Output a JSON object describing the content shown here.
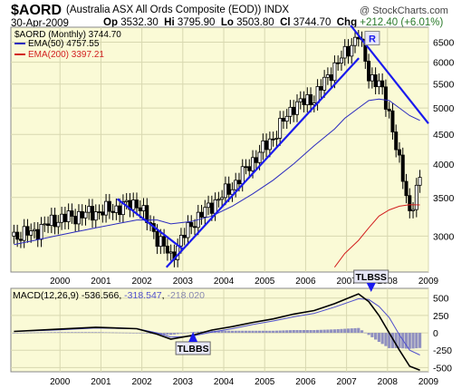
{
  "header": {
    "ticker": "$AORD",
    "name": "(Australia ASX All Ords Composite (EOD))",
    "exchange": "INDX",
    "date": "30-Apr-2009",
    "op_label": "Op",
    "op": "3532.30",
    "hi_label": "Hi",
    "hi": "3795.90",
    "lo_label": "Lo",
    "lo": "3503.80",
    "cl_label": "Cl",
    "cl": "3744.70",
    "chg_label": "Chg",
    "chg": "+212.40 (+6.01%)",
    "watermark": "@ StockCharts.com"
  },
  "legend": {
    "price": "$AORD (Monthly) 3744.70",
    "ema50": "EMA(50) 4757.55",
    "ema200": "EMA(200) 3397.21"
  },
  "macd": {
    "label": "MACD(12,26,9)",
    "macd_value": "-536.566",
    "signal_value": "-318.547",
    "hist_value": "-218.020"
  },
  "annotations": {
    "top_label": "R",
    "sell_signal": "TLBSS",
    "buy_signal": "TLBBS"
  },
  "colors": {
    "price_bg": "#fafad6",
    "macd_bg": "#fafad6",
    "ema50": "#2b2bbf",
    "ema200": "#d21f1f",
    "trendline": "#1a1aee",
    "macd_line": "#000000",
    "signal_line": "#5050cc",
    "hist": "#9090c0",
    "label_box": "#e6e6f6"
  },
  "chart_data": [
    {
      "type": "line",
      "title": "$AORD (Monthly) 3744.70",
      "x_tick_labels": [
        "2000",
        "2001",
        "2002",
        "2003",
        "2004",
        "2005",
        "2006",
        "2007",
        "2008",
        "2009"
      ],
      "y_tick_labels": [
        "3000",
        "3500",
        "4000",
        "4500",
        "5000",
        "5500",
        "6000",
        "6500"
      ],
      "ylim": [
        2600,
        6900
      ],
      "y_scale": "log",
      "grid": true,
      "x": [
        "1999-05",
        "1999-11",
        "2000-05",
        "2000-11",
        "2001-05",
        "2001-11",
        "2002-05",
        "2002-11",
        "2003-03",
        "2003-09",
        "2004-03",
        "2004-09",
        "2005-03",
        "2005-09",
        "2006-03",
        "2006-09",
        "2007-03",
        "2007-06",
        "2007-10",
        "2008-01",
        "2008-04",
        "2008-07",
        "2008-10",
        "2009-01",
        "2009-04"
      ],
      "series": [
        {
          "name": "$AORD (Monthly) 3744.70",
          "values": [
            3000,
            3050,
            3200,
            3250,
            3300,
            3350,
            3430,
            2980,
            2760,
            3150,
            3400,
            3650,
            4050,
            4450,
            5050,
            5200,
            5900,
            6200,
            6700,
            5700,
            5500,
            4900,
            4000,
            3300,
            3745
          ]
        },
        {
          "name": "EMA(50) 4757.55",
          "values": [
            2900,
            2950,
            3000,
            3050,
            3100,
            3150,
            3200,
            3200,
            3150,
            3180,
            3250,
            3380,
            3550,
            3750,
            4000,
            4300,
            4600,
            4800,
            5000,
            5150,
            5180,
            5150,
            5000,
            4850,
            4758
          ]
        },
        {
          "name": "EMA(200) 3397.21",
          "values": [
            null,
            null,
            null,
            null,
            null,
            null,
            null,
            null,
            null,
            null,
            null,
            null,
            null,
            null,
            null,
            null,
            2650,
            2800,
            2950,
            3100,
            3250,
            3330,
            3380,
            3400,
            3397
          ]
        }
      ]
    },
    {
      "type": "line",
      "title": "MACD(12,26,9)",
      "x_tick_labels": [
        "2000",
        "2001",
        "2002",
        "2003",
        "2004",
        "2005",
        "2006",
        "2007",
        "2008",
        "2009"
      ],
      "y_tick_labels": [
        "500",
        "250",
        "0",
        "-250",
        "-500"
      ],
      "ylim": [
        -560,
        640
      ],
      "grid": true,
      "x": [
        "1999-05",
        "2000-05",
        "2001-05",
        "2002-05",
        "2002-11",
        "2003-03",
        "2003-09",
        "2004-03",
        "2004-09",
        "2005-03",
        "2005-09",
        "2006-03",
        "2006-09",
        "2007-03",
        "2007-10",
        "2008-01",
        "2008-04",
        "2008-07",
        "2008-10",
        "2009-01",
        "2009-04"
      ],
      "series": [
        {
          "name": "MACD(12,26,9) -536.566",
          "values": [
            20,
            50,
            80,
            60,
            -20,
            -90,
            -40,
            40,
            90,
            150,
            200,
            270,
            320,
            420,
            560,
            450,
            250,
            0,
            -250,
            -480,
            -537
          ]
        },
        {
          "name": "-318.547",
          "values": [
            20,
            40,
            70,
            60,
            0,
            -60,
            -50,
            10,
            60,
            120,
            170,
            230,
            280,
            370,
            490,
            480,
            380,
            220,
            -30,
            -250,
            -319
          ]
        },
        {
          "name": "-218.020",
          "values": [
            0,
            10,
            10,
            0,
            -20,
            -30,
            10,
            30,
            30,
            30,
            30,
            40,
            40,
            50,
            70,
            -30,
            -130,
            -220,
            -220,
            -230,
            -218
          ]
        }
      ]
    }
  ]
}
